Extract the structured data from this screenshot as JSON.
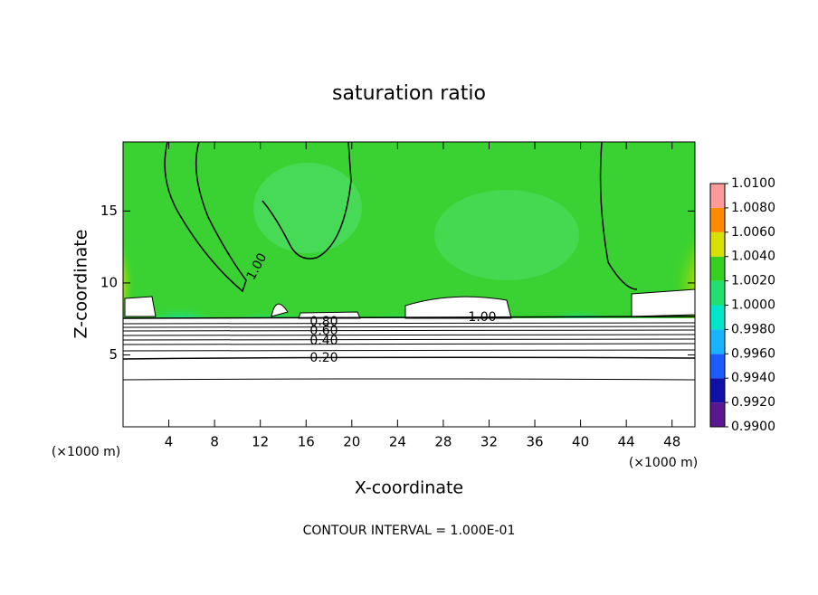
{
  "chart_data": {
    "type": "contour",
    "title": "saturation ratio",
    "x_label": "X-coordinate",
    "y_label": "Z-coordinate",
    "x_unit_label": "(×1000 m)",
    "y_unit_label": "(×1000 m)",
    "footer": "CONTOUR INTERVAL = 1.000E-01",
    "xlim": [
      0,
      50
    ],
    "xticks": [
      4,
      8,
      12,
      16,
      20,
      24,
      28,
      32,
      36,
      40,
      44,
      48
    ],
    "ylim": [
      0,
      19.8
    ],
    "yticks": [
      5,
      10,
      15
    ],
    "contour_labels": [
      {
        "value": 1.0,
        "label": "1.00"
      },
      {
        "value": 1.0,
        "label": "1.00"
      },
      {
        "value": 0.8,
        "label": "0.80"
      },
      {
        "value": 0.6,
        "label": "0.60"
      },
      {
        "value": 0.4,
        "label": "0.40"
      },
      {
        "value": 0.2,
        "label": "0.20"
      }
    ],
    "colorbar": {
      "lim": [
        0.99,
        1.01
      ],
      "ticks": [
        {
          "value": 0.99,
          "label": "0.9900"
        },
        {
          "value": 0.992,
          "label": "0.9920"
        },
        {
          "value": 0.994,
          "label": "0.9940"
        },
        {
          "value": 0.996,
          "label": "0.9960"
        },
        {
          "value": 0.998,
          "label": "0.9980"
        },
        {
          "value": 1.0,
          "label": "1.0000"
        },
        {
          "value": 1.002,
          "label": "1.0020"
        },
        {
          "value": 1.004,
          "label": "1.0040"
        },
        {
          "value": 1.006,
          "label": "1.0060"
        },
        {
          "value": 1.008,
          "label": "1.0080"
        },
        {
          "value": 1.01,
          "label": "1.0100"
        }
      ],
      "colors": [
        "#5a1890",
        "#1010a8",
        "#1a5cff",
        "#18b4ff",
        "#00e6c8",
        "#20e070",
        "#38d020",
        "#d8e000",
        "#ff8c00",
        "#ff2a1a"
      ],
      "top_color": "#ff9a9a"
    }
  }
}
